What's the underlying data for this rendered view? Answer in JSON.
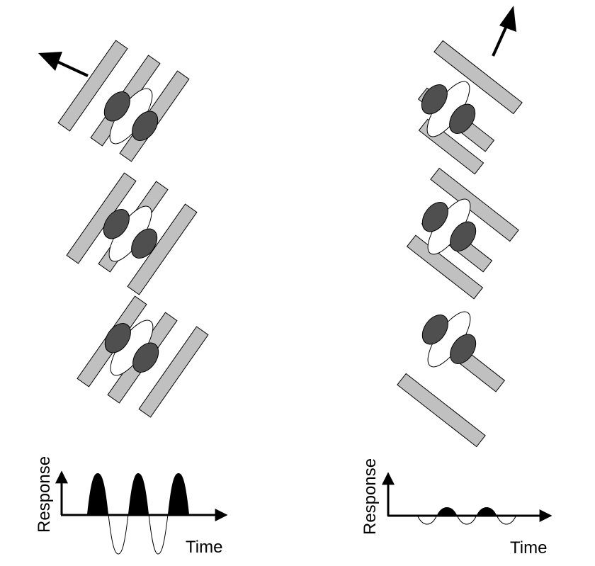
{
  "left_plot": {
    "ylabel": "Response",
    "xlabel": "Time"
  },
  "right_plot": {
    "ylabel": "Response",
    "xlabel": "Time"
  },
  "colors": {
    "grating_bar": "#c0c0c0",
    "dark_subfield": "#4f4f4f",
    "light_subfield": "#ffffff",
    "outline": "#000000"
  },
  "icons": [
    "arrow-upper-left-icon",
    "arrow-up-right-icon"
  ]
}
